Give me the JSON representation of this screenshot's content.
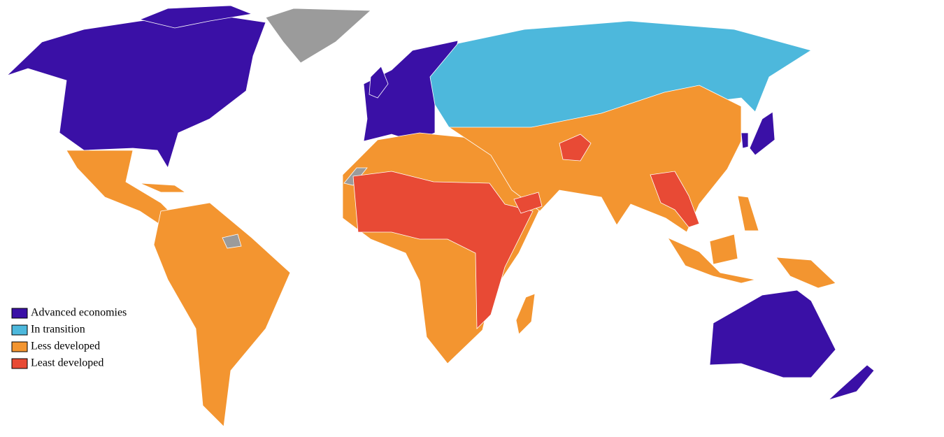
{
  "legend": {
    "items": [
      {
        "label": "Advanced economies",
        "color": "#3a10a6"
      },
      {
        "label": "In transition",
        "color": "#4db8dc"
      },
      {
        "label": "Less developed",
        "color": "#f39530"
      },
      {
        "label": "Least developed",
        "color": "#e84a35"
      }
    ]
  }
}
